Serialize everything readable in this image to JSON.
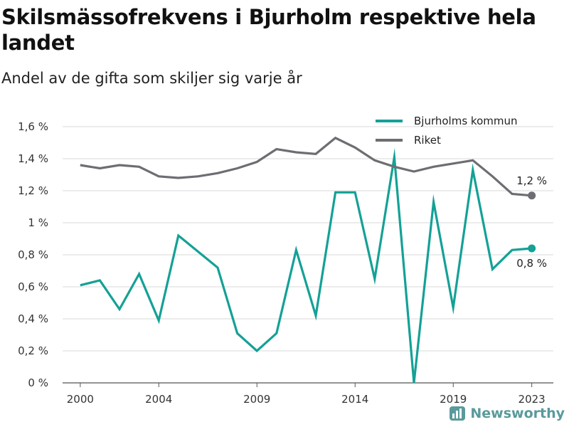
{
  "title": "Skilsmässofrekvens i Bjurholm respektive hela landet",
  "subtitle": "Andel av de gifta som skiljer sig varje år",
  "brand": "Newsworthy",
  "chart_data": {
    "type": "line",
    "x": [
      2000,
      2001,
      2002,
      2003,
      2004,
      2005,
      2006,
      2007,
      2008,
      2009,
      2010,
      2011,
      2012,
      2013,
      2014,
      2015,
      2016,
      2017,
      2018,
      2019,
      2020,
      2021,
      2022,
      2023
    ],
    "x_ticks": [
      2000,
      2004,
      2009,
      2014,
      2019,
      2023
    ],
    "x_tick_labels": [
      "2000",
      "2004",
      "2009",
      "2014",
      "2019",
      "2023"
    ],
    "y_ticks": [
      0,
      0.2,
      0.4,
      0.6,
      0.8,
      1.0,
      1.2,
      1.4,
      1.6
    ],
    "y_tick_labels": [
      "0 %",
      "0,2 %",
      "0,4 %",
      "0,6 %",
      "0,8 %",
      "1 %",
      "1,2 %",
      "1,4 %",
      "1,6 %"
    ],
    "xlim": [
      1999.1,
      2024.1
    ],
    "ylim": [
      0,
      1.6
    ],
    "legend_position": "top-right",
    "grid": true,
    "series": [
      {
        "name": "Bjurholms kommun",
        "color": "#14a196",
        "values": [
          0.61,
          0.64,
          0.46,
          0.68,
          0.39,
          0.92,
          0.82,
          0.72,
          0.31,
          0.2,
          0.31,
          0.83,
          0.42,
          1.19,
          1.19,
          0.65,
          1.41,
          0.0,
          1.13,
          0.47,
          1.33,
          0.71,
          0.83,
          0.84
        ],
        "end_label": "0,8 %"
      },
      {
        "name": "Riket",
        "color": "#6e6d73",
        "values": [
          1.36,
          1.34,
          1.36,
          1.35,
          1.29,
          1.28,
          1.29,
          1.31,
          1.34,
          1.38,
          1.46,
          1.44,
          1.43,
          1.53,
          1.47,
          1.39,
          1.35,
          1.32,
          1.35,
          1.37,
          1.39,
          1.29,
          1.18,
          1.17
        ],
        "end_label": "1,2 %"
      }
    ]
  }
}
